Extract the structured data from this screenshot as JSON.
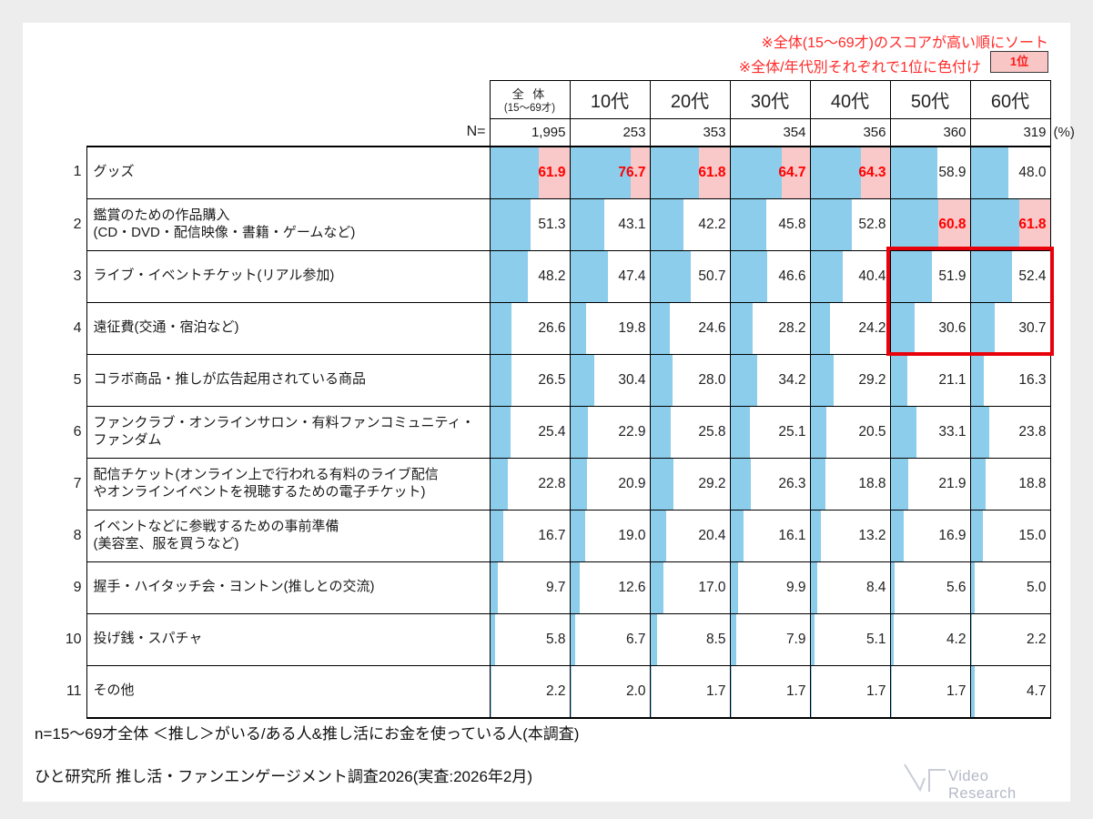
{
  "notes": {
    "sort_note": "※全体(15〜69才)のスコアが高い順にソート",
    "color_note": "※全体/年代別それぞれで1位に色付け",
    "legend_badge": "1位"
  },
  "chart_data": {
    "type": "bar",
    "orientation": "horizontal",
    "value_axis_range": [
      0,
      100
    ],
    "unit": "%",
    "n_label": "N=",
    "percent_label": "(%)",
    "columns": [
      {
        "label": "全 体",
        "sub": "(15〜69才)",
        "n": "1,995"
      },
      {
        "label": "10代",
        "n": "253"
      },
      {
        "label": "20代",
        "n": "353"
      },
      {
        "label": "30代",
        "n": "354"
      },
      {
        "label": "40代",
        "n": "356"
      },
      {
        "label": "50代",
        "n": "360"
      },
      {
        "label": "60代",
        "n": "319"
      }
    ],
    "rows": [
      {
        "rank": "1",
        "label": "グッズ",
        "values": [
          61.9,
          76.7,
          61.8,
          64.7,
          64.3,
          58.9,
          48.0
        ],
        "first_place_cols": [
          0,
          1,
          2,
          3,
          4
        ]
      },
      {
        "rank": "2",
        "label": "鑑賞のための作品購入\n(CD・DVD・配信映像・書籍・ゲームなど)",
        "values": [
          51.3,
          43.1,
          42.2,
          45.8,
          52.8,
          60.8,
          61.8
        ],
        "first_place_cols": [
          5,
          6
        ]
      },
      {
        "rank": "3",
        "label": "ライブ・イベントチケット(リアル参加)",
        "values": [
          48.2,
          47.4,
          50.7,
          46.6,
          40.4,
          51.9,
          52.4
        ],
        "first_place_cols": []
      },
      {
        "rank": "4",
        "label": "遠征費(交通・宿泊など)",
        "values": [
          26.6,
          19.8,
          24.6,
          28.2,
          24.2,
          30.6,
          30.7
        ],
        "first_place_cols": []
      },
      {
        "rank": "5",
        "label": "コラボ商品・推しが広告起用されている商品",
        "values": [
          26.5,
          30.4,
          28.0,
          34.2,
          29.2,
          21.1,
          16.3
        ],
        "first_place_cols": []
      },
      {
        "rank": "6",
        "label": "ファンクラブ・オンラインサロン・有料ファンコミュニティ・\nファンダム",
        "values": [
          25.4,
          22.9,
          25.8,
          25.1,
          20.5,
          33.1,
          23.8
        ],
        "first_place_cols": []
      },
      {
        "rank": "7",
        "label": "配信チケット(オンライン上で行われる有料のライブ配信\nやオンラインイベントを視聴するための電子チケット)",
        "values": [
          22.8,
          20.9,
          29.2,
          26.3,
          18.8,
          21.9,
          18.8
        ],
        "first_place_cols": []
      },
      {
        "rank": "8",
        "label": "イベントなどに参戦するための事前準備\n(美容室、服を買うなど)",
        "values": [
          16.7,
          19.0,
          20.4,
          16.1,
          13.2,
          16.9,
          15.0
        ],
        "first_place_cols": []
      },
      {
        "rank": "9",
        "label": "握手・ハイタッチ会・ヨントン(推しとの交流)",
        "values": [
          9.7,
          12.6,
          17.0,
          9.9,
          8.4,
          5.6,
          5.0
        ],
        "first_place_cols": []
      },
      {
        "rank": "10",
        "label": "投げ銭・スパチャ",
        "values": [
          5.8,
          6.7,
          8.5,
          7.9,
          5.1,
          4.2,
          2.2
        ],
        "first_place_cols": []
      },
      {
        "rank": "11",
        "label": "その他",
        "values": [
          2.2,
          2.0,
          1.7,
          1.7,
          1.7,
          1.7,
          4.7
        ],
        "first_place_cols": []
      }
    ],
    "highlight_box": {
      "rows": [
        "3",
        "4"
      ],
      "columns": [
        "50代",
        "60代"
      ],
      "color": "#e8000a"
    },
    "colors": {
      "bar": "#8bcdeb",
      "first_place_bg": "#f9c8c8",
      "first_place_text": "#ff0000"
    },
    "legend_position": "top-right",
    "grid": true
  },
  "footer": {
    "line1": "n=15〜69才全体 ＜推し＞がいる/ある人&推し活にお金を使っている人(本調査)",
    "line2": "ひと研究所 推し活・ファンエンゲージメント調査2026(実査:2026年2月)"
  },
  "logo": {
    "text": "Video Research"
  }
}
